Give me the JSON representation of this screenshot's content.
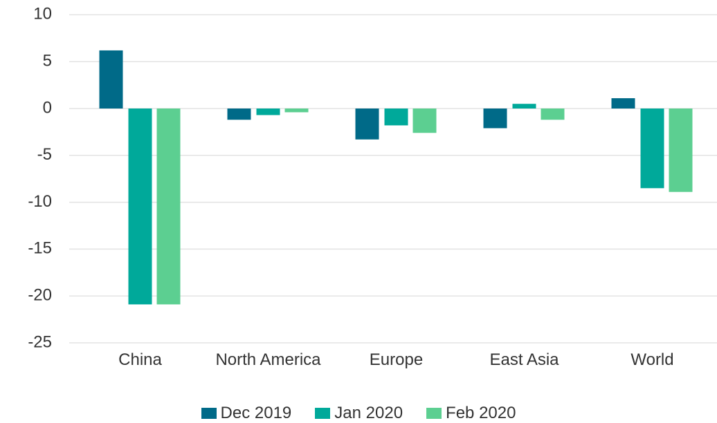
{
  "chart_data": {
    "type": "bar",
    "categories": [
      "China",
      "North America",
      "Europe",
      "East Asia",
      "World"
    ],
    "series": [
      {
        "name": "Dec 2019",
        "color": "#006a88",
        "values": [
          6.2,
          -1.2,
          -3.3,
          -2.1,
          1.1
        ]
      },
      {
        "name": "Jan 2020",
        "color": "#00a99a",
        "values": [
          -20.9,
          -0.7,
          -1.8,
          0.5,
          -8.5
        ]
      },
      {
        "name": "Feb 2020",
        "color": "#5ccf91",
        "values": [
          -20.9,
          -0.4,
          -2.6,
          -1.2,
          -8.9
        ]
      }
    ],
    "ylim": [
      -26,
      10
    ],
    "yticks": [
      -25,
      -20,
      -15,
      -10,
      -5,
      0,
      5,
      10
    ],
    "grid": true
  }
}
